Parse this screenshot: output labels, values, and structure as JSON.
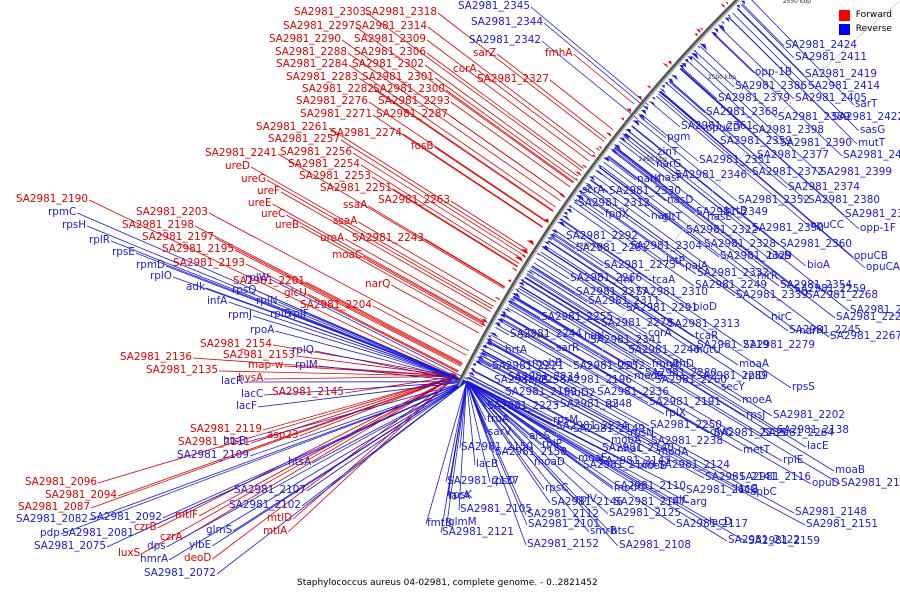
{
  "legend": {
    "forward_label": "Forward",
    "reverse_label": "Reverse",
    "forward_color": "#e00000",
    "reverse_color": "#1a1ad6"
  },
  "caption": "Staphylococcus aureus 04-02981, complete genome. - 0..2821452",
  "kbp_ticks": [
    "2350 kbp",
    "2400 kbp",
    "2450 kbp",
    "2500 kbp",
    "2550 kbp",
    "2600 kbp",
    "2650 kbp",
    "2700 kbp",
    "2750 kbp"
  ],
  "forward_genes": [
    "SA2981_2303",
    "SA2981_2318",
    "SA2981_2297",
    "SA2981_2314",
    "SA2981_2290",
    "SA2981_2309",
    "SA2981_2288",
    "SA2981_2306",
    "SA2981_2284",
    "SA2981_2302",
    "SA2981_2283",
    "SA2981_2301",
    "SA2981_2282",
    "SA2981_2300",
    "SA2981_2276",
    "SA2981_2293",
    "SA2981_2271",
    "SA2981_2287",
    "SA2981_2261",
    "SA2981_2274",
    "SA2981_2257",
    "SA2981_2256",
    "SA2981_2241",
    "SA2981_2254",
    "SA2981_2253",
    "SA2981_2251",
    "SA2981_2263",
    "SA2981_2190",
    "SA2981_2203",
    "SA2981_2198",
    "SA2981_2197",
    "SA2981_2195",
    "SA2981_2193",
    "SA2981_2201",
    "SA2981_2204",
    "SA2981_2154",
    "SA2981_2153",
    "SA2981_2136",
    "SA2981_2135",
    "SA2981_2145",
    "SA2981_2119",
    "SA2981_2111",
    "SA2981_2096",
    "SA2981_2094",
    "SA2981_2087",
    "sarZ",
    "fmhA",
    "corA",
    "SA2981_2327",
    "fosB",
    "ureD",
    "ureG",
    "ureF",
    "ureE",
    "ureC",
    "ureB",
    "ureA",
    "ssaA",
    "ssaA",
    "SA2981_2243",
    "moaC",
    "narQ",
    "glcU",
    "map-w",
    "hysA",
    "asp23",
    "mtlF",
    "mtlD",
    "mtlA",
    "czrB",
    "czrA",
    "luxS",
    "deoD"
  ],
  "reverse_genes": [
    "SA2981_2345",
    "SA2981_2344",
    "SA2981_2342",
    "rpmC",
    "rpsH",
    "rplR",
    "rpsE",
    "rpmD",
    "rplO",
    "adk",
    "infA",
    "rpmJ",
    "rpsQ",
    "rplW",
    "rplN",
    "rplF",
    "rplB",
    "rpoA",
    "rplQ",
    "rplM",
    "lacR",
    "lacC",
    "lacF",
    "htsB",
    "SA2981_2109",
    "htsA",
    "SA2981_2107",
    "SA2981_2102",
    "SA2981_2092",
    "glmS",
    "SA2981_2082",
    "pdp",
    "SA2981_2081",
    "SA2981_2075",
    "dps",
    "ylbE",
    "hmrA",
    "SA2981_2072",
    "SA2981_2424",
    "SA2981_2411",
    "opp-1B",
    "SA2981_2419",
    "SA2981_2386",
    "SA2981_2414",
    "SA2981_2379",
    "SA2981_2405",
    "sarT",
    "SA2981_2368",
    "SA2981_2389",
    "SA2981_2422",
    "opuCD",
    "SA2981_2398",
    "sasG",
    "SA2981_2361",
    "SA2981_2390",
    "mutT",
    "pgm",
    "SA2981_2359",
    "SA2981_2377",
    "SA2981_2406",
    "zinT",
    "SA2981_2351",
    "SA2981_2372",
    "SA2981_2399",
    "narG",
    "nasF",
    "SA2981_2346",
    "narK",
    "SA2981_2374",
    "SA2981_2330",
    "SA2981_2352",
    "SA2981_2380",
    "scrA",
    "SA2981_2312",
    "hrtB",
    "fpgX",
    "nasD",
    "SA2981_2349",
    "SA2981_2381",
    "narI",
    "nasE",
    "gltT",
    "opuCC",
    "opp-1F",
    "SA2981_2322",
    "SA2981_2350",
    "SA2981_2292",
    "SA2981_2281",
    "SA2981_2304",
    "SA2981_2328",
    "SA2981_2360",
    "bioB",
    "SA2981_2329",
    "opuCB",
    "SA2981_2273",
    "lctP",
    "paiA",
    "bioA",
    "opuCA",
    "SA2981_2266",
    "fni",
    "tcaA",
    "SA2981_2332",
    "nirR",
    "SA2981_2354",
    "SA2981_2259",
    "SA2981_2277",
    "SA2981_2310",
    "SA2981_2249",
    "SA2981_2311",
    "SA2981_2339",
    "SA2981_2268",
    "SA2981_2291",
    "bioD",
    "SA2981_2240",
    "SA2981_2255",
    "SA2981_2278",
    "SA2981_2313",
    "nirC",
    "SA2981_2225",
    "SA2981_2244",
    "hutI",
    "corA",
    "tcaR",
    "narH",
    "SA2981_2341",
    "SA2981_2219",
    "SA2981_2245",
    "SA2981_2267",
    "hrtA",
    "sarR",
    "SA2981_2246",
    "hutU",
    "SA2981_2279",
    "mobB",
    "bioY",
    "yrhD",
    "fmhB",
    "moaA",
    "SA2981_2221",
    "SA2981_2252",
    "SA2981_2280",
    "SA2981_2234",
    "SA2981_2258",
    "topB",
    "SA2981_2196",
    "modB",
    "SA2981_2289",
    "rplD",
    "SA2981_2199",
    "fhuD2",
    "SA2981_2236",
    "SA2981_2260",
    "secY",
    "rpsS",
    "SA2981_2223",
    "SA2981_2248",
    "rpi",
    "SA2981_2191",
    "moeA",
    "truA",
    "rpsM",
    "rplX",
    "rpsJ",
    "SA2981_2202",
    "SA2981_2224",
    "SA2981_2250",
    "sarV",
    "alsS",
    "SA2981_2149",
    "rpsN",
    "SA2981_2235",
    "SA2981_2264",
    "mobA",
    "SA2981_2238",
    "glvC",
    "SA2981_2138",
    "SA2981_2150",
    "rplP",
    "SA2981_2140",
    "SA2981_2158",
    "nhaC",
    "modA",
    "metT",
    "lacE",
    "lacB",
    "moaD",
    "moaE",
    "SA2981_2143",
    "rplE",
    "moaB",
    "opuD",
    "SA2981_2126",
    "SA2981_2137",
    "rpsD",
    "SA2981_2160",
    "moeB",
    "SA2981_2116",
    "SA2981_2124",
    "SA2981_2141",
    "rpsK",
    "rpsC",
    "modC",
    "SA2981_2110",
    "SA2981_2118",
    "lacG",
    "lacA",
    "SA2981_2146",
    "rplV",
    "apbC",
    "SA2981_2105",
    "SA2981_2112",
    "SA2981_2125",
    "SA2981_2147",
    "rplC",
    "arg",
    "SA2981_2148",
    "glmM",
    "SA2981_2101",
    "smrB",
    "htsC",
    "SA2981_2117",
    "lacD",
    "SA2981_2151",
    "fmtB",
    "SA2981_2121",
    "SA2981_2152",
    "SA2981_2108",
    "SA2981_2122",
    "SA2981_2159"
  ]
}
